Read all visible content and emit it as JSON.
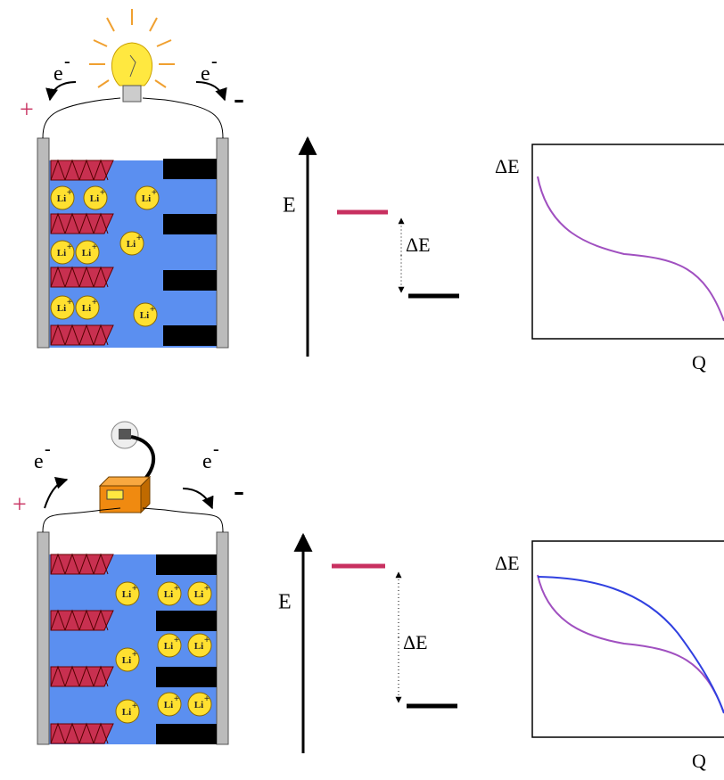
{
  "panels": [
    {
      "electron_label": "e",
      "electron_charge": "-",
      "positive": "+",
      "negative": "-",
      "ion_label": "Li",
      "ion_charge": "+",
      "energy_axis": "E",
      "gap_label": "ΔE",
      "plot_y_label": "ΔE",
      "plot_x_label": "Q"
    },
    {
      "electron_label": "e",
      "electron_charge": "-",
      "positive": "+",
      "negative": "-",
      "ion_label": "Li",
      "ion_charge": "+",
      "energy_axis": "E",
      "gap_label": "ΔE",
      "plot_y_label": "ΔE",
      "plot_x_label": "Q"
    }
  ]
}
